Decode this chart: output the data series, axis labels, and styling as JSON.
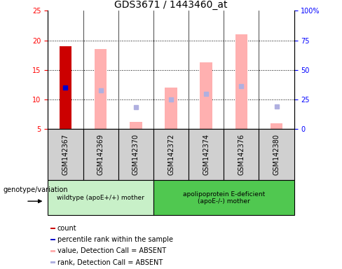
{
  "title": "GDS3671 / 1443460_at",
  "samples": [
    "GSM142367",
    "GSM142369",
    "GSM142370",
    "GSM142372",
    "GSM142374",
    "GSM142376",
    "GSM142380"
  ],
  "ylim_left": [
    5,
    25
  ],
  "ylim_right": [
    0,
    100
  ],
  "yticks_left": [
    5,
    10,
    15,
    20,
    25
  ],
  "yticks_right": [
    0,
    25,
    50,
    75,
    100
  ],
  "count_values": [
    19.0,
    null,
    null,
    null,
    null,
    null,
    null
  ],
  "percentile_rank": [
    12.0,
    null,
    null,
    null,
    null,
    null,
    null
  ],
  "pink_bar_bottom": 5,
  "pink_bar_top": [
    null,
    18.5,
    6.2,
    12.0,
    16.3,
    21.0,
    6.0
  ],
  "blue_rank_values": [
    null,
    11.5,
    8.7,
    10.0,
    11.0,
    12.2,
    8.8
  ],
  "group1_count": 3,
  "group2_count": 4,
  "group1_label": "wildtype (apoE+/+) mother",
  "group2_label": "apolipoprotein E-deficient\n(apoE-/-) mother",
  "group1_color": "#c8f0c8",
  "group2_color": "#50c850",
  "genotype_label": "genotype/variation",
  "legend_items": [
    {
      "color": "#cc0000",
      "label": "count"
    },
    {
      "color": "#0000cc",
      "label": "percentile rank within the sample"
    },
    {
      "color": "#ffb0b0",
      "label": "value, Detection Call = ABSENT"
    },
    {
      "color": "#b0b0e0",
      "label": "rank, Detection Call = ABSENT"
    }
  ],
  "bar_width": 0.35,
  "pink_color": "#ffb0b0",
  "blue_rank_color": "#b0b0e0",
  "red_color": "#cc0000",
  "blue_color": "#0000cc",
  "background_color": "#ffffff",
  "box_bg_color": "#d0d0d0",
  "dotted_lines": [
    10,
    15,
    20
  ],
  "title_fontsize": 10,
  "tick_fontsize": 7,
  "label_fontsize": 7
}
